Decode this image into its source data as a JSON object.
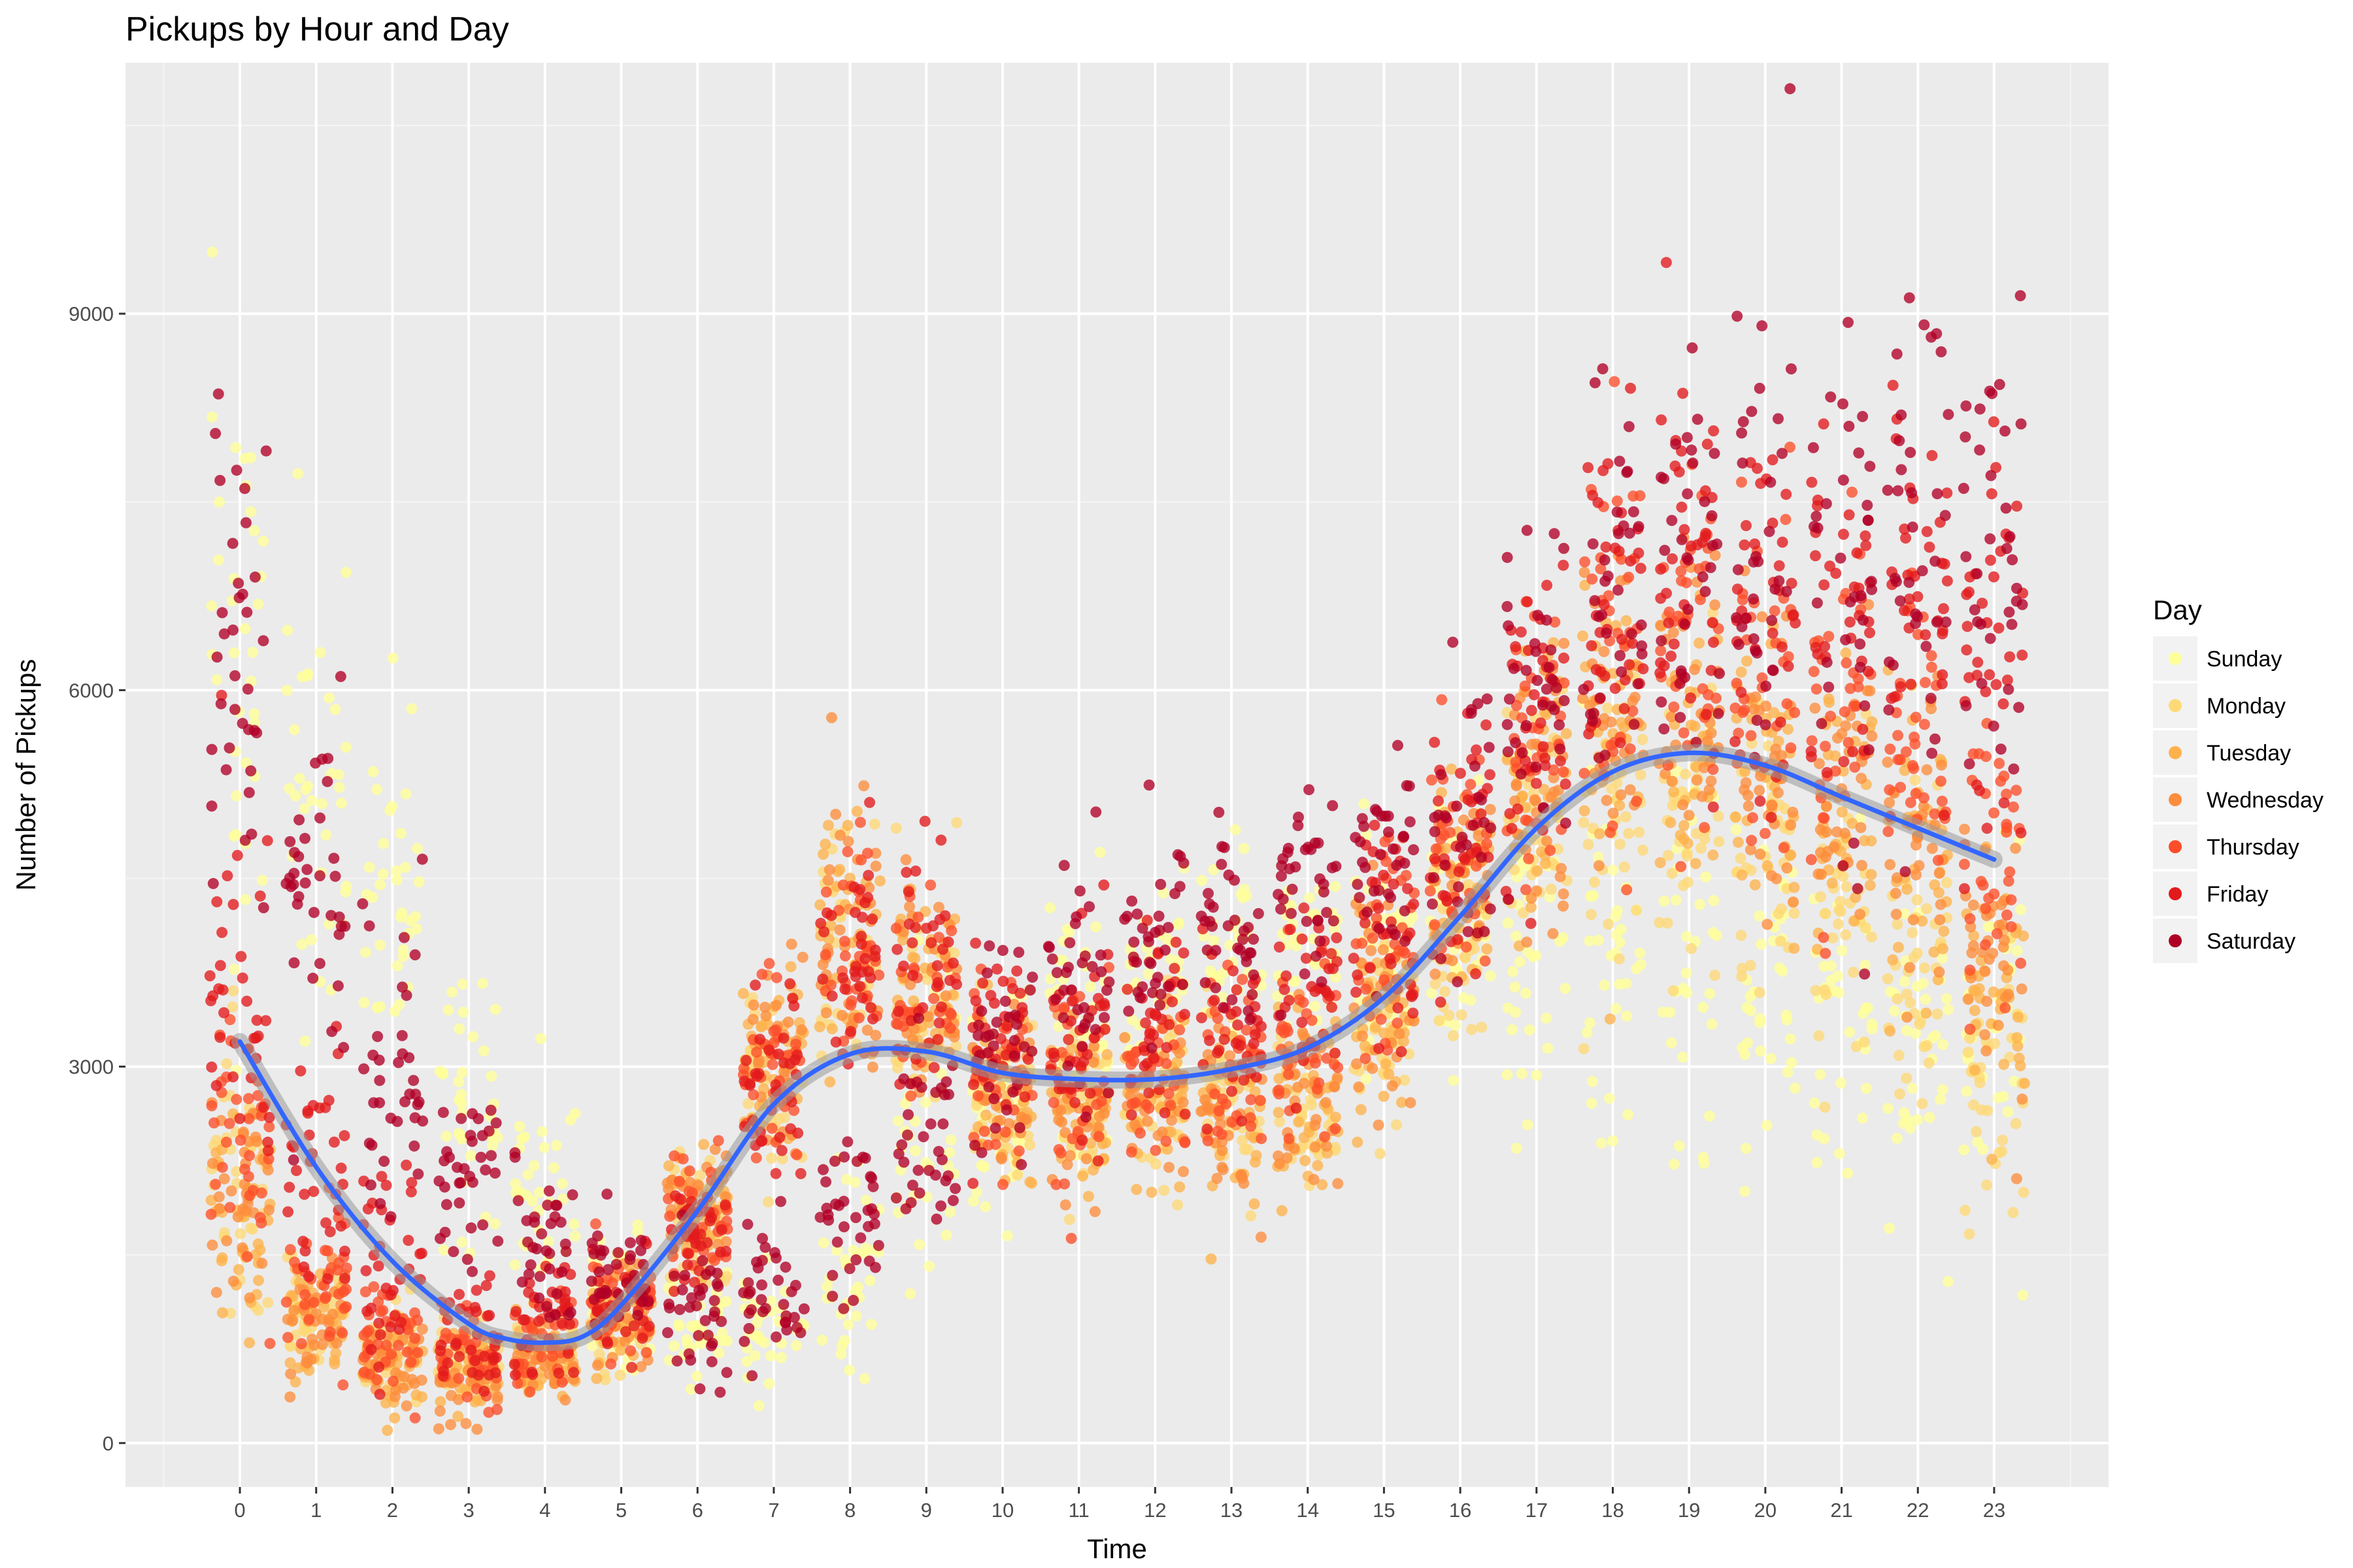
{
  "chart_data": {
    "type": "scatter",
    "title": "Pickups by Hour and Day",
    "xlabel": "Time",
    "ylabel": "Number of Pickups",
    "x_ticks": [
      0,
      1,
      2,
      3,
      4,
      5,
      6,
      7,
      8,
      9,
      10,
      11,
      12,
      13,
      14,
      15,
      16,
      17,
      18,
      19,
      20,
      21,
      22,
      23
    ],
    "y_ticks": [
      0,
      3000,
      6000,
      9000
    ],
    "xlim": [
      -1.5,
      24.5
    ],
    "ylim": [
      -350,
      11000
    ],
    "grid": true,
    "jitter": "points jittered horizontally within ±0.4 of each hour",
    "legend": {
      "title": "Day",
      "position": "right",
      "entries": [
        "Sunday",
        "Monday",
        "Tuesday",
        "Wednesday",
        "Thursday",
        "Friday",
        "Saturday"
      ],
      "colors": [
        "#ffff99",
        "#fed976",
        "#feb24c",
        "#fd8d3c",
        "#fc4e2a",
        "#e31a1c",
        "#b10026"
      ]
    },
    "series": [
      {
        "name": "Sunday",
        "color": "#ffff99",
        "typical_by_hour": [
          6000,
          5400,
          4300,
          2700,
          1900,
          1150,
          1000,
          900,
          1300,
          2400,
          2600,
          3400,
          3700,
          3800,
          3900,
          3900,
          4100,
          3900,
          4000,
          3900,
          3700,
          3500,
          3300,
          3200
        ],
        "spread_by_hour": [
          1400,
          1200,
          1000,
          600,
          450,
          250,
          200,
          250,
          350,
          700,
          500,
          500,
          500,
          450,
          450,
          500,
          500,
          700,
          800,
          900,
          700,
          700,
          700,
          700
        ]
      },
      {
        "name": "Monday",
        "color": "#fed976",
        "typical_by_hour": [
          2300,
          1100,
          800,
          650,
          700,
          1000,
          1700,
          2900,
          4000,
          3500,
          2700,
          2800,
          2700,
          2700,
          2700,
          3300,
          4100,
          4900,
          5200,
          5000,
          4700,
          4300,
          3700,
          2800
        ],
        "spread_by_hour": [
          500,
          250,
          200,
          150,
          150,
          200,
          300,
          400,
          500,
          450,
          350,
          350,
          350,
          350,
          350,
          400,
          450,
          550,
          600,
          650,
          600,
          600,
          600,
          500
        ]
      },
      {
        "name": "Tuesday",
        "color": "#feb24c",
        "typical_by_hour": [
          1800,
          950,
          650,
          500,
          650,
          950,
          1900,
          3100,
          4100,
          3800,
          2800,
          2600,
          2700,
          2600,
          2800,
          3400,
          4400,
          5300,
          5700,
          5600,
          5300,
          5100,
          4600,
          3600
        ],
        "spread_by_hour": [
          450,
          250,
          200,
          150,
          150,
          200,
          300,
          400,
          500,
          450,
          350,
          350,
          350,
          350,
          350,
          400,
          450,
          550,
          650,
          650,
          600,
          600,
          600,
          550
        ]
      },
      {
        "name": "Wednesday",
        "color": "#fd8d3c",
        "typical_by_hour": [
          2000,
          1000,
          700,
          550,
          650,
          1000,
          1900,
          3100,
          4100,
          3700,
          2800,
          2700,
          2700,
          2600,
          2800,
          3500,
          4400,
          5300,
          5900,
          5800,
          5500,
          5300,
          4800,
          3800
        ],
        "spread_by_hour": [
          450,
          250,
          200,
          150,
          150,
          200,
          300,
          400,
          500,
          450,
          350,
          350,
          350,
          350,
          350,
          400,
          450,
          550,
          650,
          650,
          600,
          600,
          600,
          550
        ]
      },
      {
        "name": "Thursday",
        "color": "#fc4e2a",
        "typical_by_hour": [
          2500,
          1300,
          900,
          700,
          800,
          1100,
          1800,
          3000,
          4000,
          3700,
          2900,
          2800,
          2900,
          2900,
          3100,
          3800,
          4700,
          5600,
          6300,
          6300,
          6200,
          6000,
          5700,
          4800
        ],
        "spread_by_hour": [
          500,
          300,
          250,
          200,
          200,
          200,
          300,
          400,
          500,
          450,
          400,
          400,
          400,
          400,
          400,
          450,
          500,
          600,
          700,
          700,
          700,
          700,
          700,
          700
        ]
      },
      {
        "name": "Friday",
        "color": "#e31a1c",
        "typical_by_hour": [
          3500,
          2300,
          1400,
          900,
          1000,
          1100,
          1700,
          2900,
          3900,
          3700,
          3100,
          3200,
          3300,
          3300,
          3600,
          4200,
          4800,
          5800,
          6600,
          6800,
          6700,
          6600,
          6500,
          6300
        ],
        "spread_by_hour": [
          800,
          600,
          400,
          250,
          250,
          200,
          300,
          400,
          500,
          450,
          400,
          400,
          400,
          400,
          400,
          500,
          550,
          650,
          750,
          750,
          750,
          750,
          750,
          750
        ]
      },
      {
        "name": "Saturday",
        "color": "#b10026",
        "typical_by_hour": [
          6300,
          4300,
          2800,
          2000,
          1500,
          1300,
          1100,
          1300,
          1800,
          2500,
          3200,
          3700,
          4000,
          4200,
          4300,
          4500,
          5000,
          5900,
          6600,
          6900,
          7000,
          6900,
          7000,
          7000
        ],
        "spread_by_hour": [
          1200,
          800,
          600,
          450,
          350,
          250,
          250,
          350,
          400,
          450,
          400,
          450,
          450,
          450,
          450,
          500,
          600,
          700,
          900,
          1000,
          1000,
          1000,
          1000,
          1000
        ]
      }
    ],
    "trend": {
      "name": "loess smooth",
      "color": "#3366ff",
      "x": [
        0,
        1,
        2,
        3,
        3.5,
        4,
        4.5,
        5,
        6,
        7,
        8,
        9,
        10,
        11,
        12,
        13,
        14,
        15,
        16,
        17,
        18,
        19,
        20,
        21,
        22,
        23
      ],
      "y": [
        3200,
        2200,
        1450,
        950,
        830,
        800,
        850,
        1100,
        1850,
        2700,
        3100,
        3120,
        2950,
        2900,
        2900,
        2980,
        3150,
        3550,
        4200,
        4900,
        5350,
        5500,
        5400,
        5150,
        4900,
        4650
      ]
    }
  }
}
